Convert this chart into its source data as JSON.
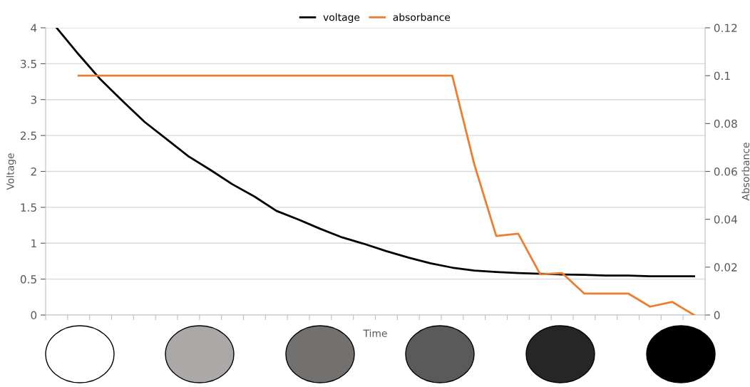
{
  "chart_data": {
    "type": "line",
    "xlabel": "Time",
    "ylabel": "Voltage",
    "y2label": "Absorbance",
    "categories": [
      null,
      null,
      null,
      null,
      null,
      null,
      null,
      null,
      null,
      null,
      null,
      null,
      null,
      null,
      null,
      null,
      null,
      null,
      null,
      null,
      null,
      null,
      null,
      null,
      null,
      null,
      null,
      null,
      null,
      null
    ],
    "series": [
      {
        "name": "voltage",
        "color": "#000000",
        "values": [
          4.0,
          3.63,
          3.28,
          2.98,
          2.69,
          2.45,
          2.21,
          2.02,
          1.82,
          1.65,
          1.45,
          1.33,
          1.2,
          1.08,
          0.99,
          0.89,
          0.8,
          0.72,
          0.66,
          0.62,
          0.6,
          0.585,
          0.575,
          0.565,
          0.56,
          0.55,
          0.55,
          0.54,
          0.54,
          0.54
        ]
      },
      {
        "name": "absorbance",
        "color": "#ed7d31",
        "axis": "y2",
        "values": [
          null,
          0.1,
          0.1,
          0.1,
          0.1,
          0.1,
          0.1,
          0.1,
          0.1,
          0.1,
          0.1,
          0.1,
          0.1,
          0.1,
          0.1,
          0.1,
          0.1,
          0.1,
          0.1,
          0.063,
          0.033,
          0.034,
          0.017,
          0.0175,
          0.009,
          0.009,
          0.009,
          0.0035,
          0.0055,
          0
        ]
      }
    ],
    "ylim": [
      0,
      4
    ],
    "yticks": [
      0,
      0.5,
      1,
      1.5,
      2,
      2.5,
      3,
      3.5,
      4
    ],
    "y2lim": [
      0,
      0.12
    ],
    "y2ticks": [
      0,
      0.02,
      0.04,
      0.06,
      0.08,
      0.1,
      0.12
    ],
    "grid": "y",
    "legend": "top",
    "marker": "none",
    "line_style": "solid"
  }
}
